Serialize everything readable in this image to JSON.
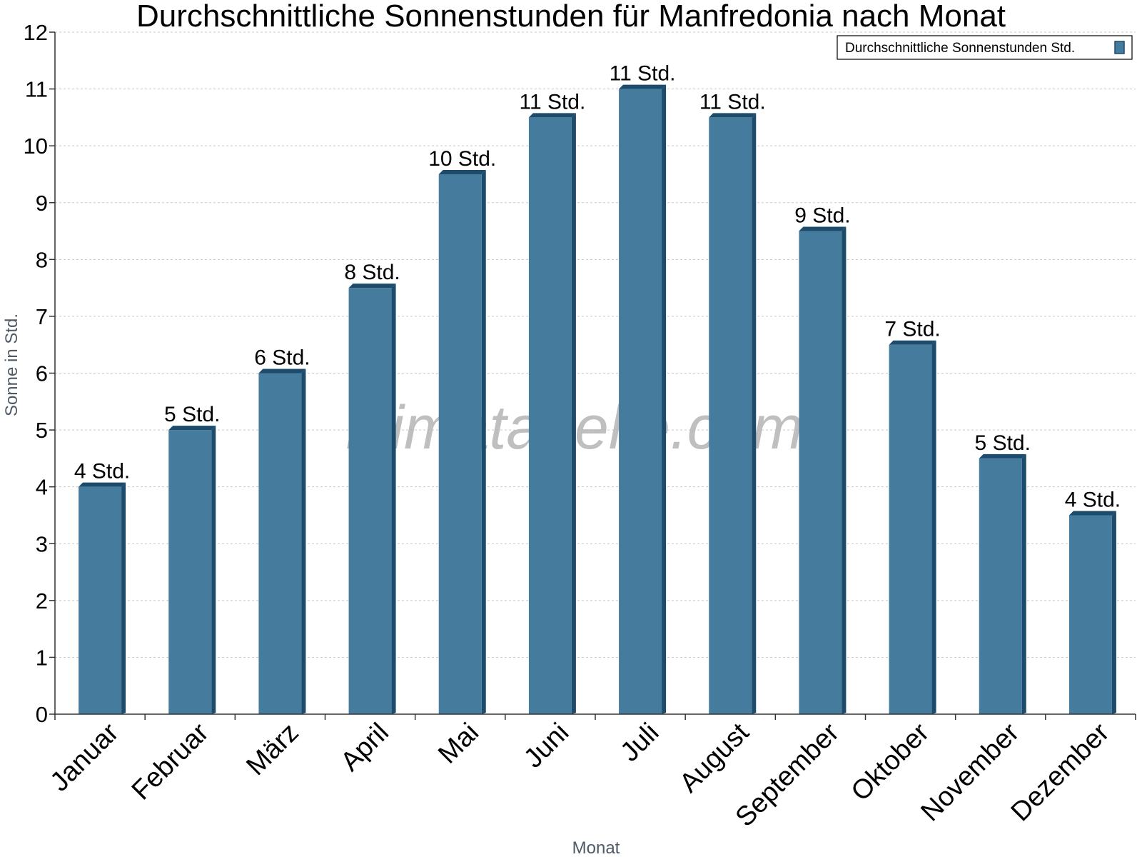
{
  "watermark": "klimatabelle.com",
  "chart_data": {
    "type": "bar",
    "title": "Durchschnittliche Sonnenstunden für Manfredonia nach Monat",
    "xlabel": "Monat",
    "ylabel": "Sonne in Std.",
    "categories": [
      "Januar",
      "Februar",
      "März",
      "April",
      "Mai",
      "Juni",
      "Juli",
      "August",
      "September",
      "Oktober",
      "November",
      "Dezember"
    ],
    "series": [
      {
        "name": "Durchschnittliche Sonnenstunden Std.",
        "values": [
          4,
          5,
          6,
          7.5,
          9.5,
          10.5,
          11,
          10.5,
          8.5,
          6.5,
          4.5,
          3.5
        ],
        "labels": [
          "4 Std.",
          "5 Std.",
          "6 Std.",
          "8 Std.",
          "10 Std.",
          "11 Std.",
          "11 Std.",
          "11 Std.",
          "9 Std.",
          "7 Std.",
          "5 Std.",
          "4 Std."
        ]
      }
    ],
    "ylim": [
      0,
      12
    ],
    "yticks": [
      0,
      1,
      2,
      3,
      4,
      5,
      6,
      7,
      8,
      9,
      10,
      11,
      12
    ],
    "grid": true,
    "legend_position": "top-right",
    "colors": {
      "bar_front": "#457b9d",
      "bar_side": "#1d4b6c",
      "bar_top": "#1d4b6c",
      "grid": "#c8c8c8",
      "axis": "#333333"
    }
  }
}
